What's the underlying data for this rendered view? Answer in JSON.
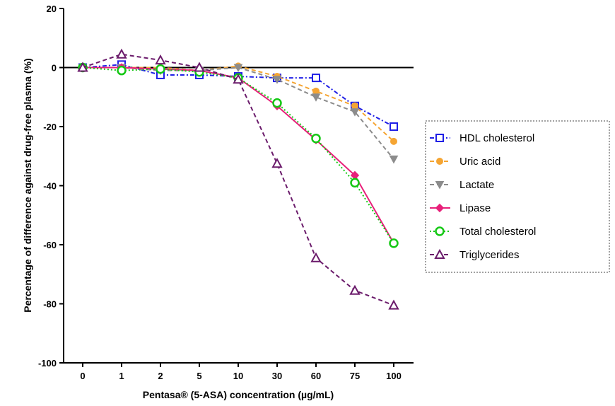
{
  "chart_data": {
    "type": "line",
    "title": "",
    "xlabel": "Pentasa®  (5-ASA) concentration (µg/mL)",
    "ylabel": "Percentage of difference against drug-free plasma (%)",
    "categories": [
      "0",
      "1",
      "2",
      "5",
      "10",
      "30",
      "60",
      "75",
      "100"
    ],
    "ylim": [
      -100,
      20
    ],
    "yticks": [
      20,
      0,
      -20,
      -40,
      -60,
      -80,
      -100
    ],
    "grid": false,
    "legend_position": "right",
    "series": [
      {
        "name": "HDL cholesterol",
        "color": "#1f1fe6",
        "marker": "square",
        "dash": "dash-dot",
        "values": [
          0,
          1,
          -2.5,
          -2.5,
          -3,
          -3.5,
          -3.5,
          -13,
          -20
        ]
      },
      {
        "name": "Uric acid",
        "color": "#f5a533",
        "marker": "circle-filled",
        "dash": "dash",
        "values": [
          0,
          0,
          0,
          -1,
          0.5,
          -3,
          -8,
          -13,
          -25
        ]
      },
      {
        "name": "Lactate",
        "color": "#8c8c8c",
        "marker": "triangle-down",
        "dash": "dash",
        "values": [
          0,
          0,
          -1,
          -1,
          0,
          -4,
          -10,
          -15,
          -31
        ]
      },
      {
        "name": "Lipase",
        "color": "#e8207a",
        "marker": "diamond",
        "dash": "solid",
        "values": [
          0,
          0,
          -0.5,
          -1,
          -3.5,
          -13,
          -24.5,
          -36.5,
          -59.5
        ]
      },
      {
        "name": "Total cholesterol",
        "color": "#14c814",
        "marker": "circle-open",
        "dash": "dot",
        "values": [
          0,
          -1,
          -0.5,
          -1.5,
          -3.5,
          -12,
          -24,
          -39,
          -59.5
        ]
      },
      {
        "name": "Triglycerides",
        "color": "#6b1b6b",
        "marker": "triangle-up",
        "dash": "dash",
        "values": [
          0,
          4.5,
          2.5,
          0,
          -4,
          -32.5,
          -64.5,
          -75.5,
          -80.5
        ]
      }
    ]
  }
}
